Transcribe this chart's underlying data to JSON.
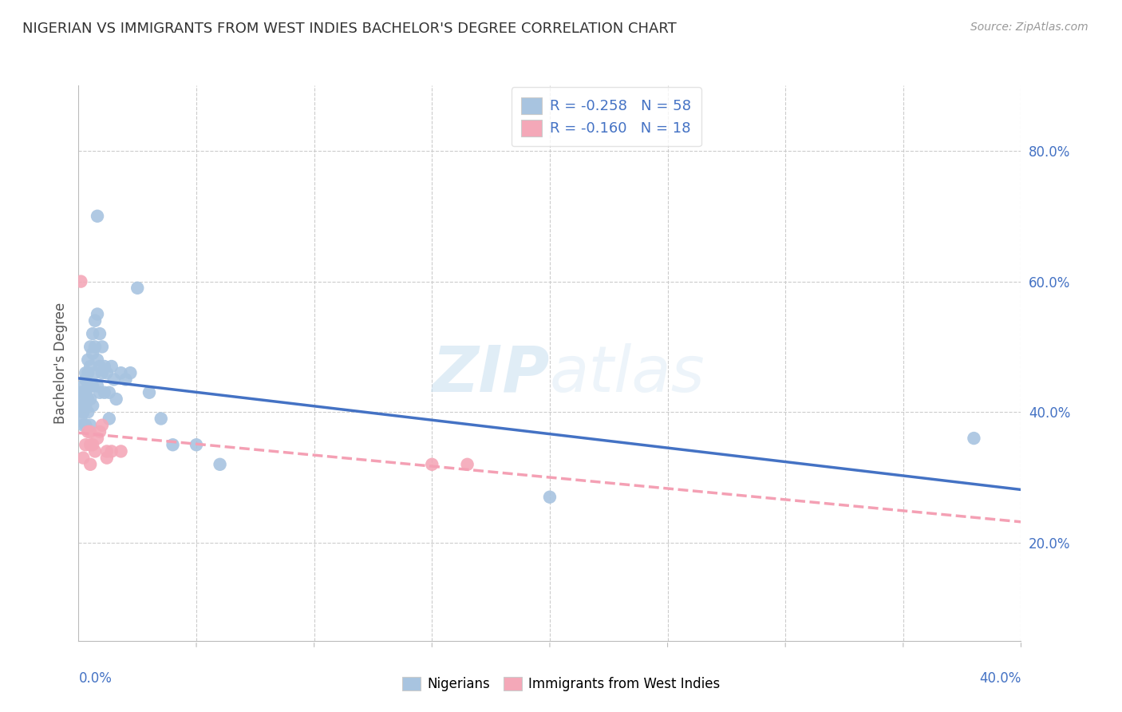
{
  "title": "NIGERIAN VS IMMIGRANTS FROM WEST INDIES BACHELOR'S DEGREE CORRELATION CHART",
  "source": "Source: ZipAtlas.com",
  "ylabel": "Bachelor's Degree",
  "right_ytick_vals": [
    0.2,
    0.4,
    0.6,
    0.8
  ],
  "right_ytick_labels": [
    "20.0%",
    "40.0%",
    "60.0%",
    "80.0%"
  ],
  "xlim": [
    0,
    0.4
  ],
  "ylim": [
    0.05,
    0.9
  ],
  "nigerians_color": "#a8c4e0",
  "west_indies_color": "#f4a8b8",
  "line_nigerian_color": "#4472c4",
  "line_westindies_color": "#f4a0b4",
  "watermark": "ZIPatlas",
  "legend1_label": "R = -0.258   N = 58",
  "legend2_label": "R = -0.160   N = 18",
  "nigerian_x": [
    0.001,
    0.001,
    0.001,
    0.002,
    0.002,
    0.002,
    0.002,
    0.002,
    0.003,
    0.003,
    0.003,
    0.003,
    0.003,
    0.004,
    0.004,
    0.004,
    0.004,
    0.004,
    0.005,
    0.005,
    0.005,
    0.005,
    0.005,
    0.006,
    0.006,
    0.006,
    0.006,
    0.007,
    0.007,
    0.007,
    0.008,
    0.008,
    0.008,
    0.008,
    0.009,
    0.009,
    0.009,
    0.01,
    0.01,
    0.011,
    0.011,
    0.012,
    0.013,
    0.013,
    0.014,
    0.015,
    0.016,
    0.018,
    0.02,
    0.022,
    0.025,
    0.03,
    0.035,
    0.04,
    0.05,
    0.06,
    0.2,
    0.38
  ],
  "nigerian_y": [
    0.43,
    0.41,
    0.39,
    0.44,
    0.43,
    0.42,
    0.4,
    0.38,
    0.46,
    0.45,
    0.43,
    0.41,
    0.38,
    0.48,
    0.46,
    0.44,
    0.42,
    0.4,
    0.5,
    0.47,
    0.44,
    0.42,
    0.38,
    0.52,
    0.49,
    0.44,
    0.41,
    0.54,
    0.5,
    0.46,
    0.7,
    0.55,
    0.48,
    0.44,
    0.52,
    0.47,
    0.43,
    0.5,
    0.46,
    0.47,
    0.43,
    0.46,
    0.43,
    0.39,
    0.47,
    0.45,
    0.42,
    0.46,
    0.45,
    0.46,
    0.59,
    0.43,
    0.39,
    0.35,
    0.35,
    0.32,
    0.27,
    0.36
  ],
  "westindies_x": [
    0.001,
    0.002,
    0.003,
    0.004,
    0.005,
    0.005,
    0.005,
    0.006,
    0.007,
    0.008,
    0.009,
    0.01,
    0.012,
    0.012,
    0.014,
    0.018,
    0.15,
    0.165
  ],
  "westindies_y": [
    0.6,
    0.33,
    0.35,
    0.37,
    0.35,
    0.37,
    0.32,
    0.35,
    0.34,
    0.36,
    0.37,
    0.38,
    0.34,
    0.33,
    0.34,
    0.34,
    0.32,
    0.32
  ],
  "xtick_grid_vals": [
    0.05,
    0.1,
    0.15,
    0.2,
    0.25,
    0.3,
    0.35,
    0.4
  ],
  "xtick_line_vals": [
    0.05,
    0.1,
    0.15,
    0.2,
    0.25,
    0.3,
    0.35,
    0.4
  ]
}
